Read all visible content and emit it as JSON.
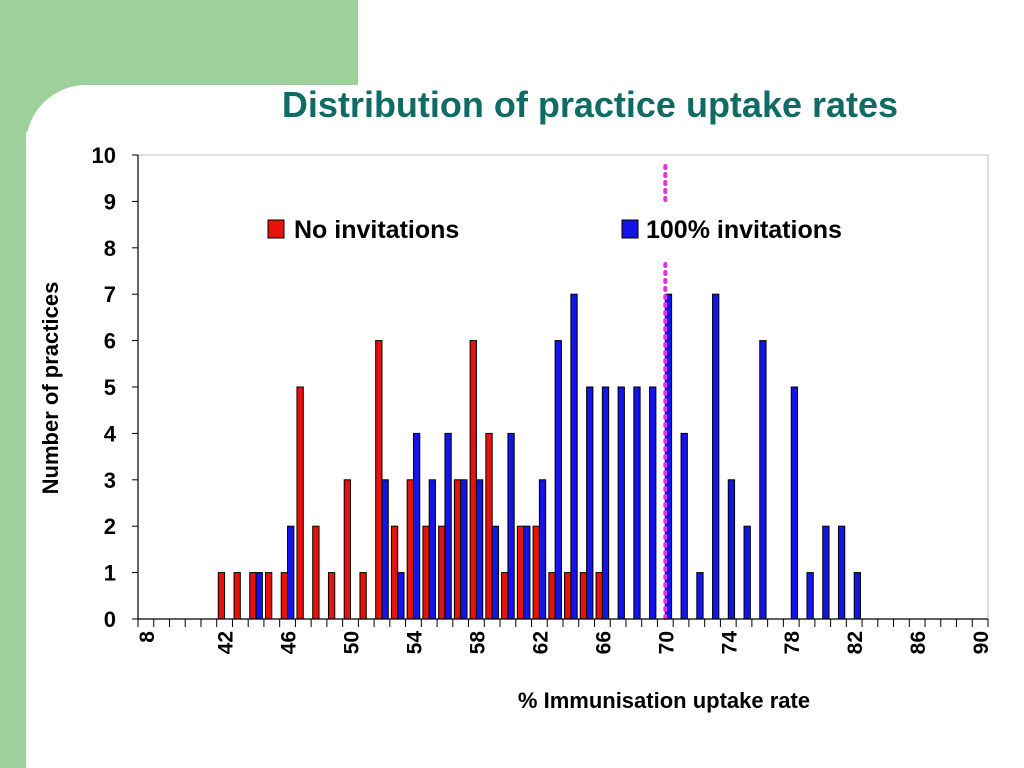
{
  "slide": {
    "title": "Distribution of practice uptake rates",
    "colors": {
      "title": "#0f6b63",
      "decor": "#9dd09a"
    }
  },
  "chart_data": {
    "type": "bar",
    "xlabel": "% Immunisation uptake rate",
    "ylabel": "Number of practices",
    "ylim": [
      0,
      10
    ],
    "yticks": [
      0,
      1,
      2,
      3,
      4,
      5,
      6,
      7,
      8,
      9,
      10
    ],
    "x_categories": [
      8,
      38,
      39,
      40,
      41,
      42,
      43,
      44,
      45,
      46,
      47,
      48,
      49,
      50,
      51,
      52,
      53,
      54,
      55,
      56,
      57,
      58,
      59,
      60,
      61,
      62,
      63,
      64,
      65,
      66,
      67,
      68,
      69,
      70,
      71,
      72,
      73,
      74,
      75,
      76,
      77,
      78,
      79,
      80,
      81,
      82,
      83,
      84,
      85,
      86,
      87,
      88,
      89,
      90
    ],
    "x_tick_labels": [
      "8",
      "42",
      "46",
      "50",
      "54",
      "58",
      "62",
      "66",
      "70",
      "74",
      "78",
      "82",
      "86",
      "90"
    ],
    "series": [
      {
        "name": "No invitations",
        "color": "#e8120c",
        "values": {
          "42": 1,
          "43": 1,
          "44": 1,
          "45": 1,
          "46": 1,
          "47": 5,
          "48": 2,
          "49": 1,
          "50": 3,
          "51": 1,
          "52": 6,
          "53": 2,
          "54": 3,
          "55": 2,
          "56": 2,
          "57": 3,
          "58": 6,
          "59": 4,
          "60": 1,
          "61": 2,
          "62": 2,
          "63": 1,
          "64": 1,
          "65": 1,
          "66": 1
        }
      },
      {
        "name": "100% invitations",
        "color": "#1414e6",
        "values": {
          "44": 1,
          "46": 2,
          "52": 3,
          "53": 1,
          "54": 4,
          "55": 3,
          "56": 4,
          "57": 3,
          "58": 3,
          "59": 2,
          "60": 4,
          "61": 2,
          "62": 3,
          "63": 6,
          "64": 7,
          "65": 5,
          "66": 5,
          "67": 5,
          "68": 5,
          "69": 5,
          "70": 7,
          "71": 4,
          "72": 1,
          "73": 7,
          "74": 3,
          "75": 2,
          "76": 6,
          "78": 5,
          "79": 1,
          "80": 2,
          "81": 2,
          "82": 1
        }
      }
    ],
    "reference_line": {
      "x": 70,
      "style": "dotted",
      "color": "#e62ee6"
    },
    "legend_position": "top",
    "grid": false
  }
}
